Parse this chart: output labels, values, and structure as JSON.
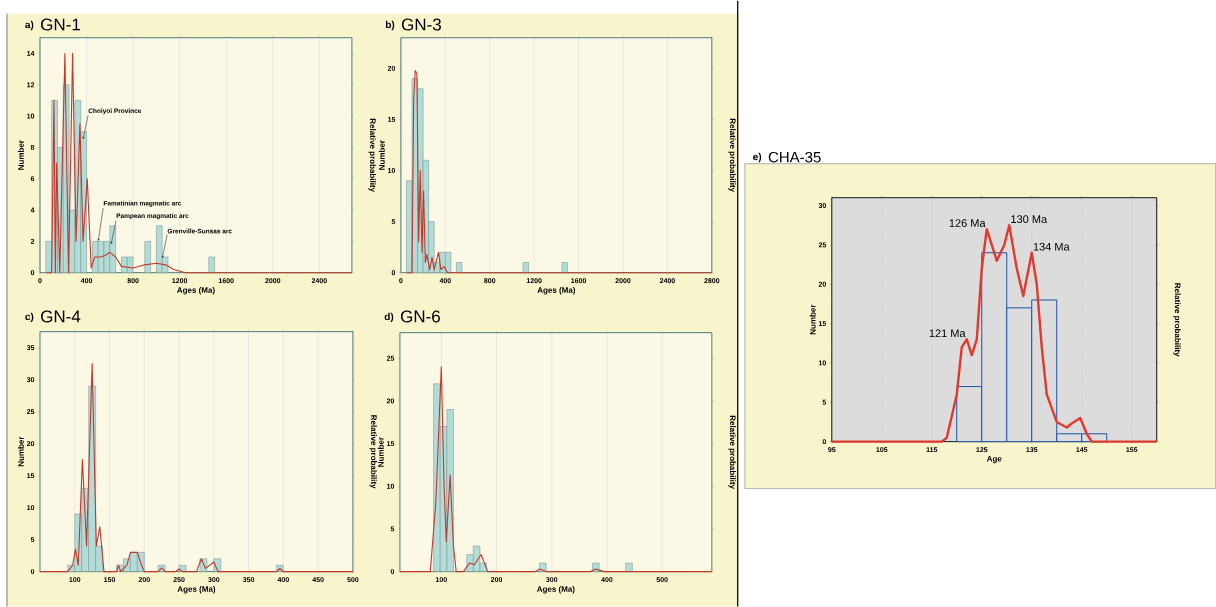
{
  "chart_data": [
    {
      "type": "histogram",
      "title": "GN-1",
      "xlabel": "Ages (Ma)",
      "ylabel": "Number",
      "y2label": "Relative probability",
      "annotations": [
        "a)",
        {
          "text": "Choiyoi Province",
          "x": 370,
          "y": 8.5
        },
        {
          "text": "Famatinian magmatic arc",
          "x": 500,
          "y": 2
        },
        {
          "text": "Pampean magmatic arc",
          "x": 610,
          "y": 1.8
        },
        {
          "text": "Grenville-Sunsas arc",
          "x": 1050,
          "y": 0.9
        }
      ],
      "xlim": [
        0,
        2680
      ],
      "xticks": [
        0,
        400,
        800,
        1200,
        1600,
        2000,
        2400
      ],
      "ylim": [
        0,
        15
      ],
      "yticks": [
        0,
        2,
        4,
        6,
        8,
        10,
        12,
        14
      ],
      "grid": "x",
      "color": "#b3dcd8",
      "bins": [
        50,
        100,
        150,
        200,
        250,
        300,
        350,
        400,
        450,
        500,
        550,
        600,
        650,
        700,
        750,
        800,
        850,
        900,
        950,
        1000,
        1050,
        1100,
        1150,
        1200,
        1250,
        1300,
        1350,
        1400,
        1450,
        1500,
        1550
      ],
      "values": [
        2,
        11,
        8,
        12,
        4,
        11,
        9,
        0,
        2,
        2,
        2,
        3,
        0,
        1,
        1,
        0,
        0,
        2,
        0,
        3,
        1,
        0,
        0,
        0,
        0,
        0,
        0,
        0,
        1,
        0
      ],
      "series": [
        {
          "type": "line",
          "color": "#c0392b",
          "x": [
            50,
            100,
            120,
            132,
            143,
            170,
            214,
            245,
            280,
            310,
            343,
            370,
            406,
            440,
            470,
            520,
            560,
            600,
            650,
            700,
            800,
            900,
            1000,
            1080,
            1150,
            1250,
            2680
          ],
          "values": [
            0,
            0,
            11,
            0,
            7,
            0,
            14,
            0,
            14,
            2,
            9.5,
            2,
            6,
            0.3,
            1,
            1,
            1.1,
            1.3,
            1,
            0.4,
            0.3,
            0.5,
            0.6,
            0.5,
            0.2,
            0,
            0
          ]
        }
      ]
    },
    {
      "type": "histogram",
      "title": "GN-3",
      "xlabel": "Ages (Ma)",
      "ylabel": "Number",
      "y2label": "Relative probability",
      "annotations": [
        "b)"
      ],
      "xlim": [
        0,
        2800
      ],
      "xticks": [
        0,
        400,
        800,
        1200,
        1600,
        2000,
        2400,
        2800
      ],
      "ylim": [
        0,
        23
      ],
      "yticks": [
        0,
        5,
        10,
        15,
        20
      ],
      "grid": "x",
      "color": "#b3dcd8",
      "bins": [
        50,
        100,
        150,
        200,
        250,
        300,
        350,
        400,
        450,
        500,
        550,
        600,
        650,
        700,
        750,
        800,
        850,
        900,
        950,
        1000,
        1050,
        1100,
        1150,
        1200,
        1250,
        1300,
        1350,
        1400,
        1450,
        1500,
        1550
      ],
      "values": [
        9,
        19,
        18,
        11,
        5,
        1,
        2,
        2,
        0,
        1,
        0,
        0,
        0,
        0,
        0,
        0,
        0,
        0,
        0,
        0,
        0,
        1,
        0,
        0,
        0,
        0,
        0,
        0,
        1,
        0
      ],
      "series": [
        {
          "type": "line",
          "color": "#c0392b",
          "x": [
            50,
            100,
            115,
            129,
            144,
            160,
            174,
            190,
            204,
            220,
            234,
            260,
            280,
            300,
            339,
            360,
            390,
            420,
            2800
          ],
          "values": [
            0,
            0,
            17,
            19.8,
            19.5,
            3,
            10,
            2,
            8,
            1,
            1.8,
            0.3,
            1.5,
            0.3,
            2,
            0.3,
            0.6,
            0,
            0
          ]
        }
      ]
    },
    {
      "type": "histogram",
      "title": "GN-4",
      "xlabel": "Ages (Ma)",
      "ylabel": "Number",
      "y2label": "Relative probability",
      "annotations": [
        "c)"
      ],
      "xlim": [
        50,
        500
      ],
      "xticks": [
        100,
        150,
        200,
        250,
        300,
        350,
        400,
        450,
        500
      ],
      "ylim": [
        0,
        37.5
      ],
      "yticks": [
        0,
        5,
        10,
        15,
        20,
        25,
        30,
        35
      ],
      "grid": "x",
      "color": "#b3dcd8",
      "bins": [
        90,
        100,
        110,
        120,
        130,
        140,
        150,
        160,
        170,
        180,
        190,
        200,
        210,
        220,
        230,
        240,
        250,
        260,
        270,
        280,
        290,
        300,
        310,
        320,
        330,
        340,
        350,
        360,
        370,
        380,
        390,
        400,
        410
      ],
      "values": [
        1,
        9,
        13,
        29,
        4,
        0,
        0,
        1,
        2,
        3,
        3,
        0,
        0,
        1,
        0,
        0,
        1,
        0,
        0,
        2,
        0,
        2,
        0,
        0,
        0,
        0,
        0,
        0,
        0,
        0,
        1,
        0
      ],
      "series": [
        {
          "type": "line",
          "color": "#c0392b",
          "x": [
            50,
            90,
            97,
            101,
            105,
            111,
            117,
            125,
            131,
            136,
            142,
            160,
            163,
            166,
            175,
            180,
            190,
            196,
            200,
            220,
            225,
            230,
            245,
            250,
            255,
            275,
            282,
            288,
            300,
            306,
            390,
            395,
            400,
            500
          ],
          "values": [
            0,
            0,
            1,
            3.5,
            1,
            17.5,
            4,
            32.5,
            4,
            7,
            0,
            0,
            1,
            0,
            1,
            3,
            3,
            1,
            0,
            0,
            0.6,
            0,
            0,
            0.4,
            0,
            0,
            2,
            0.5,
            1.5,
            0,
            0,
            0.5,
            0,
            0
          ]
        }
      ]
    },
    {
      "type": "histogram",
      "title": "GN-6",
      "xlabel": "Ages (Ma)",
      "ylabel": "Number",
      "y2label": "Relative probability",
      "annotations": [
        "d)"
      ],
      "xlim": [
        25,
        590
      ],
      "xticks": [
        100,
        200,
        300,
        400,
        500
      ],
      "ylim": [
        0,
        28
      ],
      "yticks": [
        0,
        5,
        10,
        15,
        20,
        25
      ],
      "grid": "x",
      "color": "#b3dcd8",
      "bins": [
        86,
        98,
        110,
        122,
        134,
        146,
        158,
        170,
        182,
        194,
        206,
        218,
        230,
        242,
        254,
        266,
        278,
        290,
        302,
        314,
        326,
        338,
        350,
        362,
        374,
        386,
        398,
        410,
        422,
        434,
        446,
        458
      ],
      "values": [
        22,
        17,
        19,
        0,
        0,
        2,
        3,
        1,
        0,
        0,
        0,
        0,
        0,
        0,
        0,
        0,
        1,
        0,
        0,
        0,
        0,
        0,
        0,
        0,
        1,
        0,
        0,
        0,
        0,
        1,
        0
      ],
      "series": [
        {
          "type": "line",
          "color": "#c0392b",
          "x": [
            25,
            80,
            90,
            100,
            105,
            109,
            116,
            122,
            127,
            140,
            151,
            160,
            172,
            184,
            270,
            278,
            290,
            370,
            380,
            395,
            590
          ],
          "values": [
            0,
            0,
            8,
            24,
            10,
            3.5,
            11.3,
            3,
            0,
            0,
            1,
            0.8,
            2,
            0,
            0,
            0.3,
            0,
            0,
            0.3,
            0,
            0
          ]
        }
      ]
    },
    {
      "type": "histogram",
      "title": "CHA-35",
      "xlabel": "Age",
      "ylabel": "Number",
      "y2label": "Relative probability",
      "annotations": [
        "e)",
        {
          "text": "121 Ma",
          "x": 122,
          "y": 13
        },
        {
          "text": "126 Ma",
          "x": 126,
          "y": 27
        },
        {
          "text": "130 Ma",
          "x": 130.5,
          "y": 27.5
        },
        {
          "text": "134 Ma",
          "x": 135,
          "y": 24
        }
      ],
      "xlim": [
        95,
        160
      ],
      "xticks": [
        95,
        105,
        115,
        125,
        135,
        145,
        155
      ],
      "ylim": [
        0,
        31
      ],
      "yticks": [
        0,
        5,
        10,
        15,
        20,
        25,
        30
      ],
      "grid": "x",
      "color": "#1f4fa8",
      "bins": [
        120,
        125,
        130,
        135,
        140,
        145,
        150
      ],
      "values": [
        7,
        24,
        17,
        18,
        1,
        1
      ],
      "series": [
        {
          "type": "line",
          "color": "#e03a2e",
          "x": [
            95,
            117,
            118,
            120,
            121,
            122,
            123,
            124,
            125,
            126,
            127,
            128,
            129.5,
            130.5,
            132,
            133.3,
            135,
            136,
            137,
            138,
            140,
            142,
            143,
            144.7,
            146,
            147,
            160
          ],
          "values": [
            0,
            0,
            0.5,
            6,
            12,
            13,
            11,
            13,
            22,
            27,
            25,
            23,
            25,
            27.5,
            22,
            18.5,
            24,
            20,
            12,
            6,
            2.5,
            1.8,
            2.3,
            3,
            1,
            0,
            0
          ]
        }
      ]
    }
  ]
}
